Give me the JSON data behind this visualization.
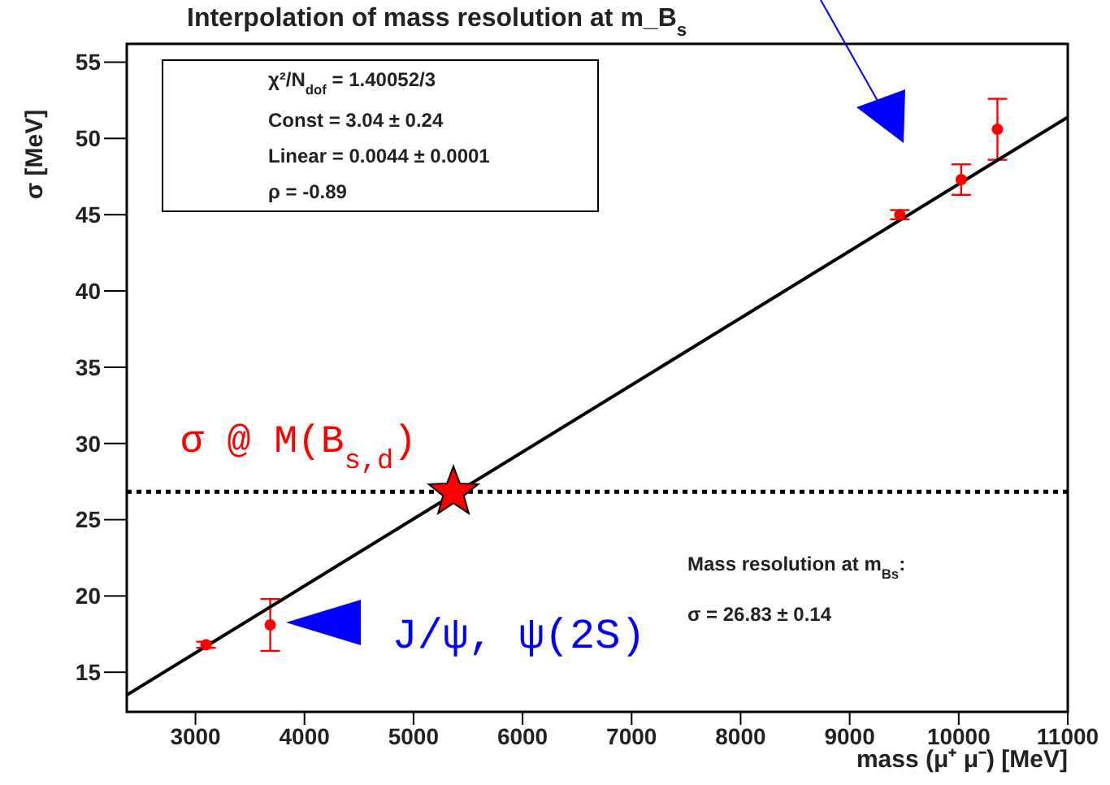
{
  "chart_data": {
    "type": "scatter",
    "title": "Interpolation of mass resolution at m_B$_{s}$",
    "xlabel": "mass (μ⁺ μ⁻) [MeV]",
    "ylabel": "σ [MeV]",
    "xlim": [
      2370,
      11000
    ],
    "ylim": [
      12.4,
      56.2
    ],
    "xticks": [
      3000,
      4000,
      5000,
      6000,
      7000,
      8000,
      9000,
      10000,
      11000
    ],
    "yticks": [
      15,
      20,
      25,
      30,
      35,
      40,
      45,
      50,
      55
    ],
    "grid": false,
    "series": [
      {
        "type": "line",
        "color": "#000000",
        "x": [
          2370,
          11000
        ],
        "values": [
          13.5,
          51.4
        ],
        "marker": "none",
        "line_style": "solid"
      },
      {
        "type": "scatter",
        "color": "#ff0000",
        "x": [
          3097,
          3686,
          9460,
          10023,
          10355
        ],
        "values": [
          16.8,
          18.1,
          45.0,
          47.3,
          50.6
        ],
        "errors": [
          0.2,
          1.7,
          0.3,
          1.0,
          2.0
        ],
        "marker": "circle"
      },
      {
        "type": "scatter",
        "color": "#ff0000",
        "x": [
          5366
        ],
        "values": [
          26.8
        ],
        "marker": "star"
      }
    ],
    "ref_lines": [
      {
        "axis": "y",
        "value": 26.83,
        "color": "#000000",
        "line_style": "dotted"
      }
    ],
    "annotations": [
      "χ²/N$_{dof}$ = 1.40052/3",
      "Const = 3.04 ± 0.24",
      "Linear = 0.0044 ± 0.0001",
      "ρ = -0.89",
      "Mass resolution at m$_{Bs}$:",
      "σ = 26.83 ± 0.14",
      "σ @ M(B$_{s,d}$)",
      {
        "text": "J/ψ, ψ(2S)",
        "x": 3686,
        "y": 18.1
      }
    ]
  }
}
